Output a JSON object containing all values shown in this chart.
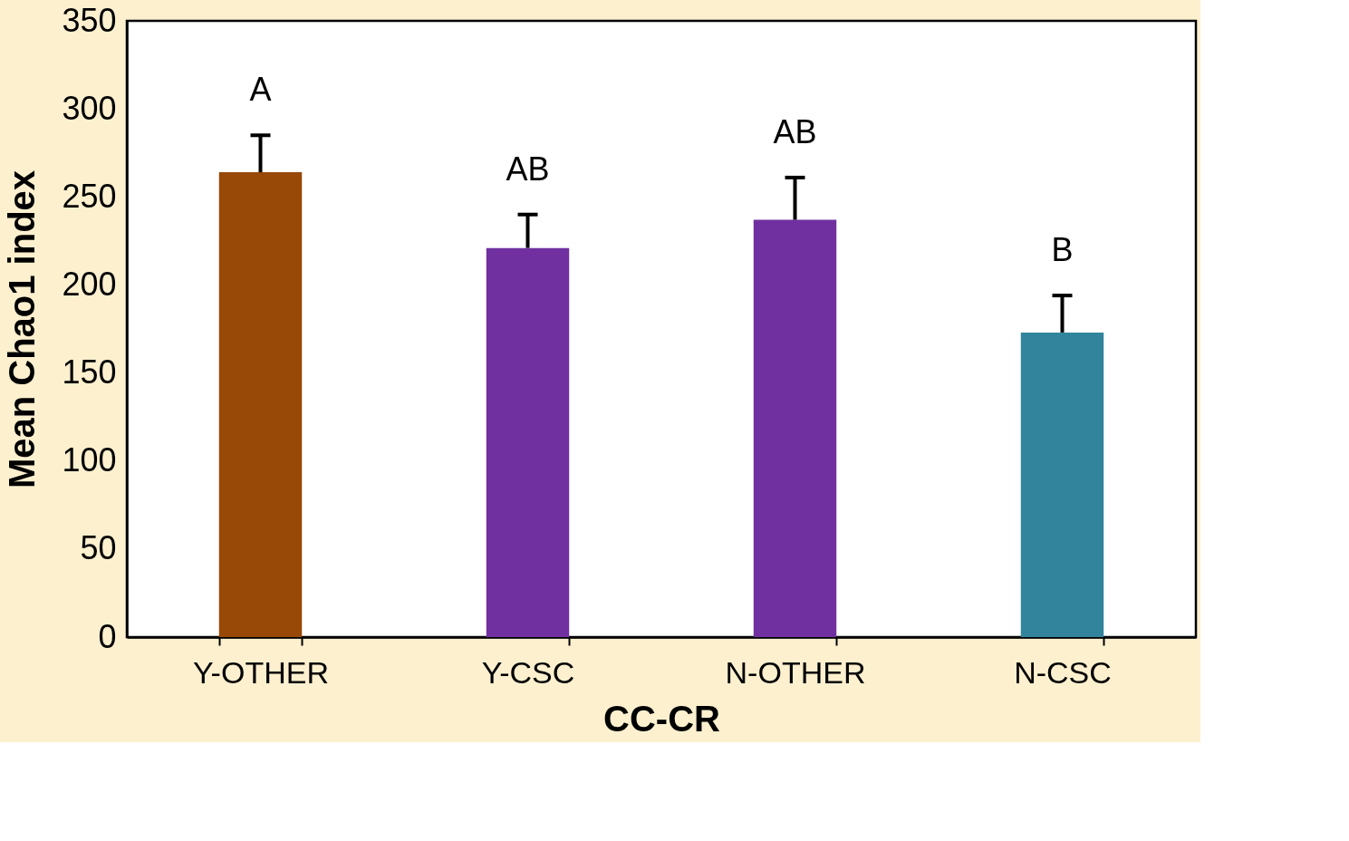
{
  "chart_data": {
    "type": "bar",
    "xlabel": "CC-CR",
    "ylabel": "Mean Chao1 index",
    "categories": [
      "Y-OTHER",
      "Y-CSC",
      "N-OTHER",
      "N-CSC"
    ],
    "values": [
      264,
      221,
      237,
      173
    ],
    "colors": [
      "#984807",
      "#7030a0",
      "#7030a0",
      "#31849b"
    ],
    "errors": [
      [
        264,
        285
      ],
      [
        221,
        240
      ],
      [
        237,
        261
      ],
      [
        173,
        194
      ]
    ],
    "annotations": [
      {
        "text": "A",
        "x": "Y-OTHER",
        "y": 285
      },
      {
        "text": "AB",
        "x": "Y-CSC",
        "y": 240
      },
      {
        "text": "AB",
        "x": "N-OTHER",
        "y": 261
      },
      {
        "text": "B",
        "x": "N-CSC",
        "y": 194
      }
    ],
    "ylim": [
      0,
      350
    ],
    "yticks": [
      0,
      50,
      100,
      150,
      200,
      250,
      300,
      350
    ],
    "grid": false
  }
}
